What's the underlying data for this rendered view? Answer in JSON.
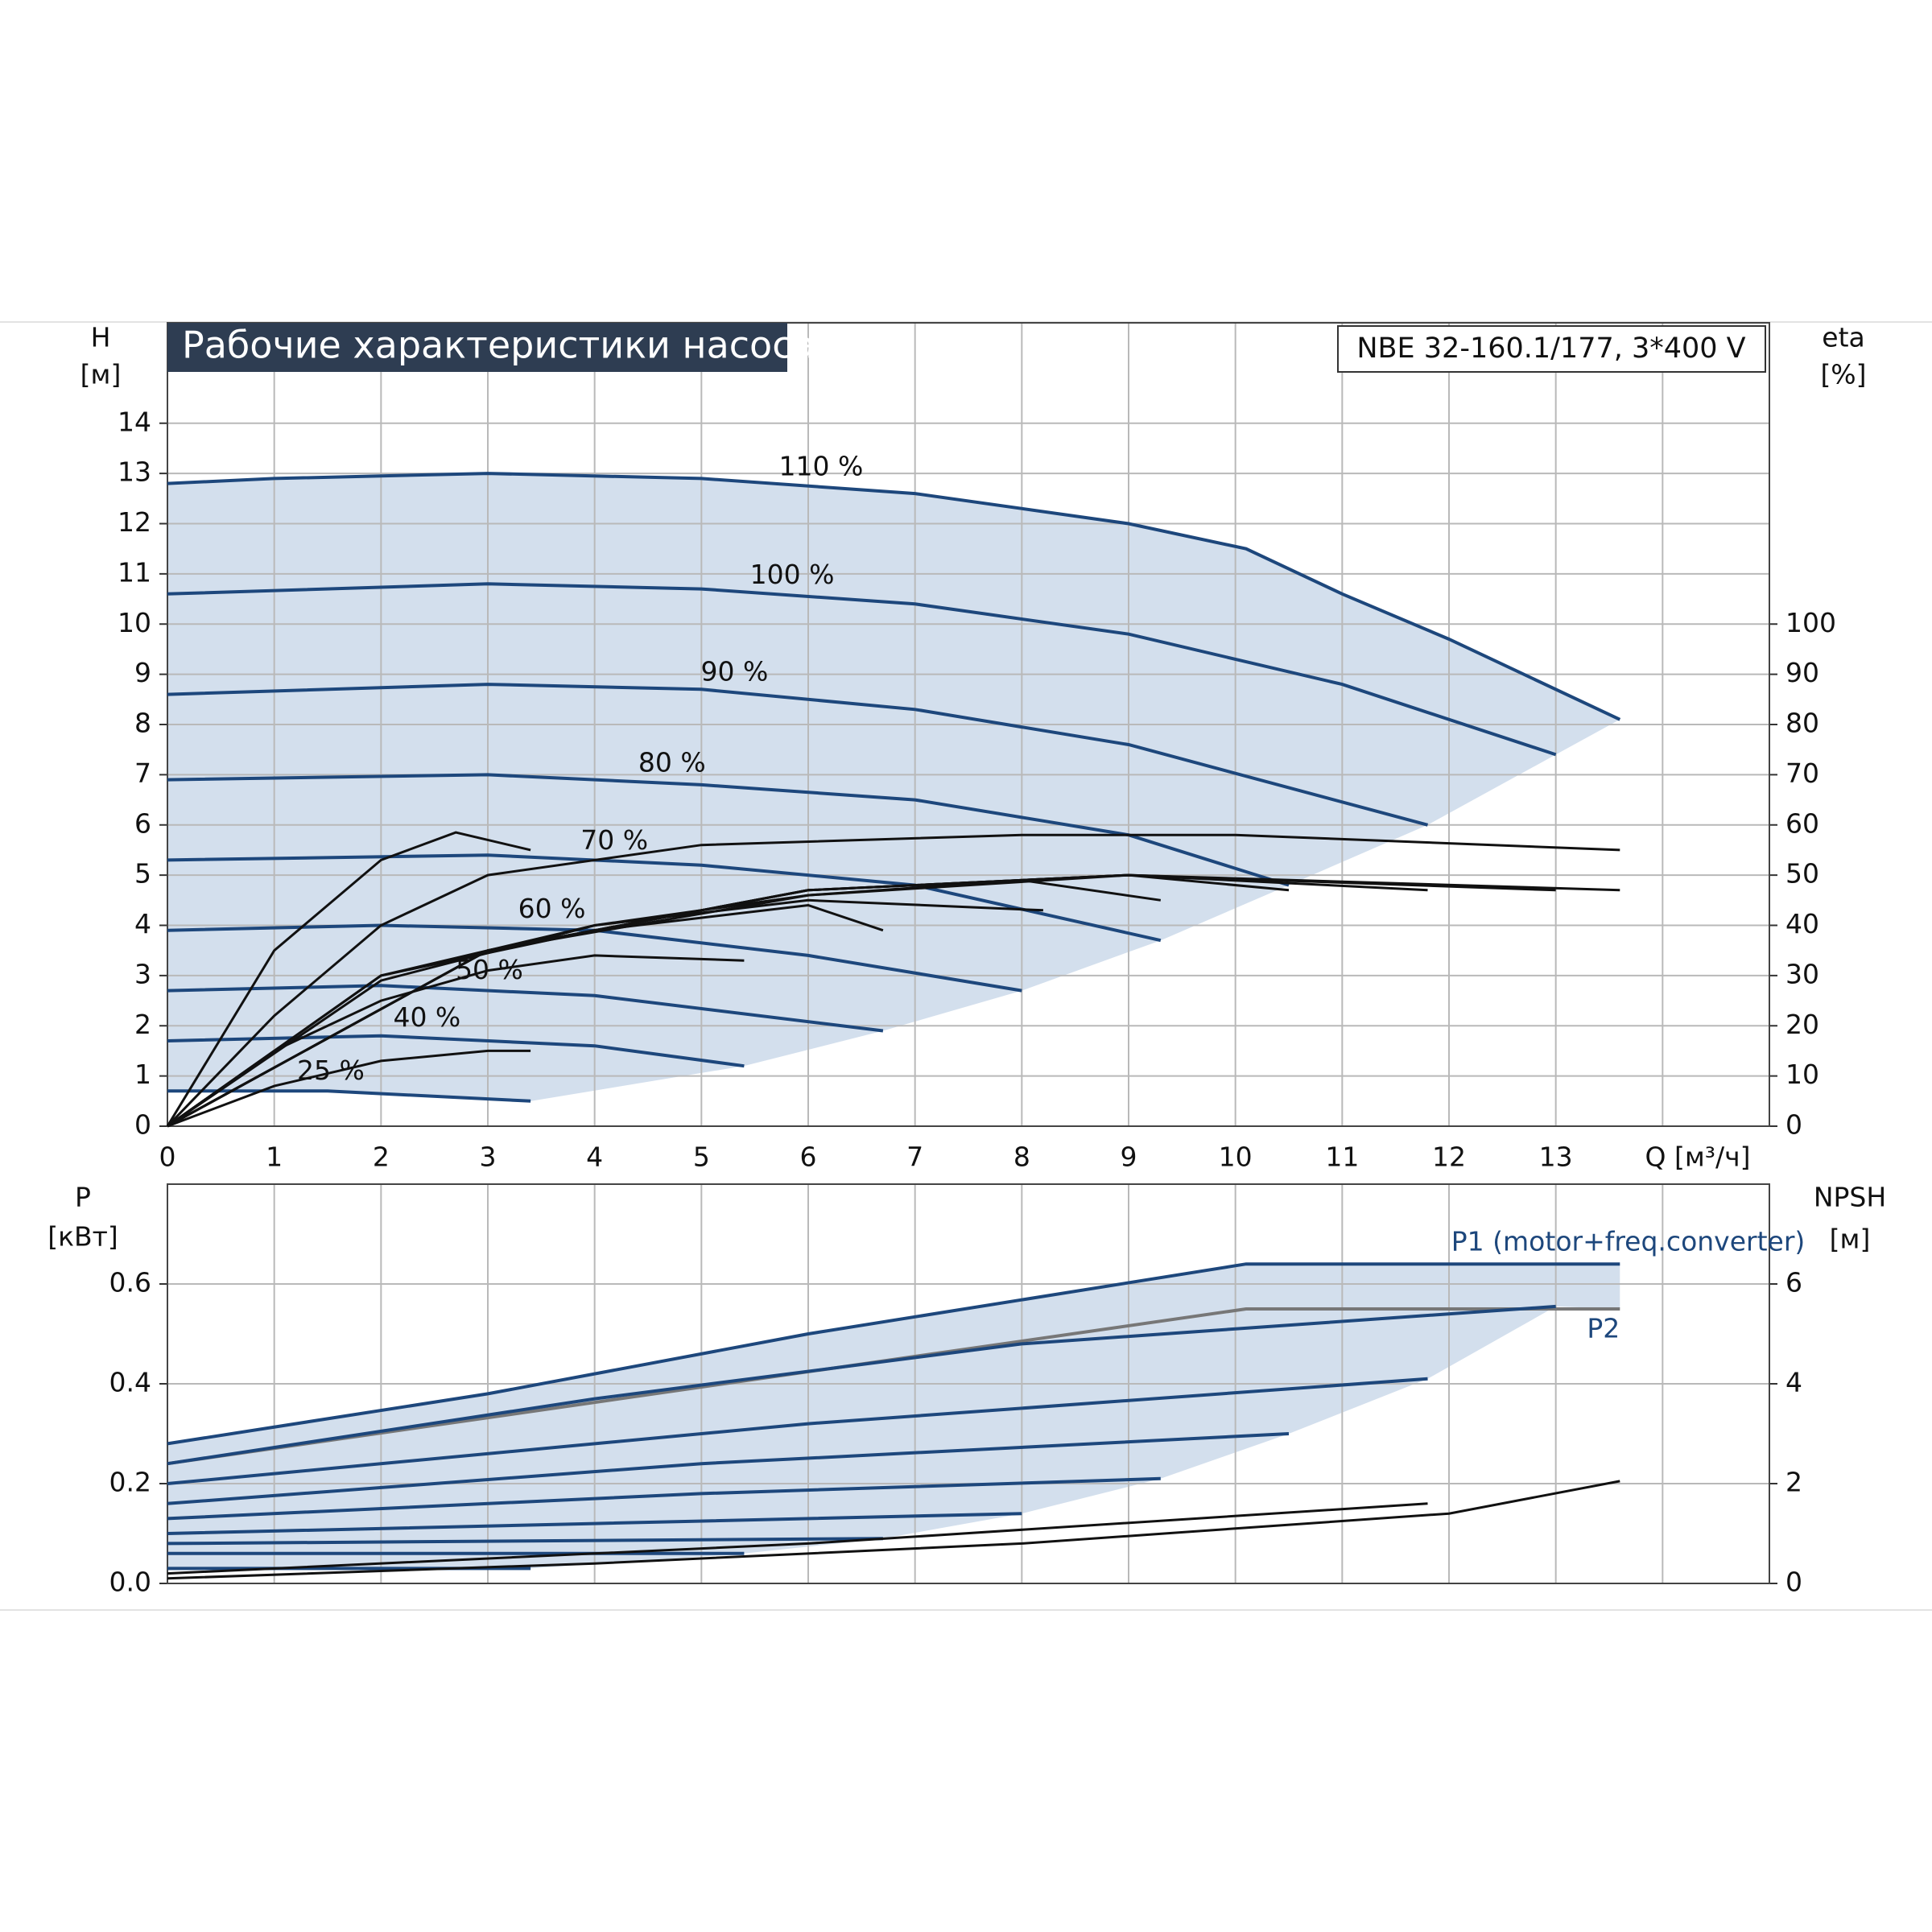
{
  "chart_data": [
    {
      "type": "line",
      "title": "Рабочие характеристики насоса",
      "subtitle": "NBE 32-160.1/177, 3*400 V",
      "y_label": [
        "H",
        "[м]"
      ],
      "y2_label": [
        "eta",
        "[%]"
      ],
      "x_label": "Q [м³/ч]",
      "xlim": [
        0,
        15
      ],
      "xticks": [
        0,
        1,
        2,
        3,
        4,
        5,
        6,
        7,
        8,
        9,
        10,
        11,
        12,
        13
      ],
      "ylim": [
        0,
        16
      ],
      "yticks": [
        0,
        1,
        2,
        3,
        4,
        5,
        6,
        7,
        8,
        9,
        10,
        11,
        12,
        13,
        14
      ],
      "y2lim": [
        0,
        160
      ],
      "y2ticks": [
        0,
        10,
        20,
        30,
        40,
        50,
        60,
        70,
        80,
        90,
        100
      ],
      "grid": true,
      "area_color": "#d3dfed",
      "series": [
        {
          "name": "110 %",
          "color": "#1d477c",
          "x": [
            0,
            1,
            3,
            5,
            7,
            9,
            10.1,
            11,
            12,
            13.6
          ],
          "values": [
            12.8,
            12.9,
            13,
            12.9,
            12.6,
            12,
            11.5,
            10.6,
            9.7,
            8.1
          ]
        },
        {
          "name": "100 %",
          "color": "#1d477c",
          "x": [
            0,
            3,
            5,
            7,
            9,
            11,
            13
          ],
          "values": [
            10.6,
            10.8,
            10.7,
            10.4,
            9.8,
            8.8,
            7.4
          ]
        },
        {
          "name": "90 %",
          "color": "#1d477c",
          "x": [
            0,
            3,
            5,
            7,
            9,
            11.8
          ],
          "values": [
            8.6,
            8.8,
            8.7,
            8.3,
            7.6,
            6.0
          ]
        },
        {
          "name": "80 %",
          "color": "#1d477c",
          "x": [
            0,
            3,
            5,
            7,
            9,
            10.5
          ],
          "values": [
            6.9,
            7.0,
            6.8,
            6.5,
            5.8,
            4.8
          ]
        },
        {
          "name": "70 %",
          "color": "#1d477c",
          "x": [
            0,
            3,
            5,
            7,
            9.3
          ],
          "values": [
            5.3,
            5.4,
            5.2,
            4.8,
            3.7
          ]
        },
        {
          "name": "60 %",
          "color": "#1d477c",
          "x": [
            0,
            2,
            4,
            6,
            8
          ],
          "values": [
            3.9,
            4.0,
            3.9,
            3.4,
            2.7
          ]
        },
        {
          "name": "50 %",
          "color": "#1d477c",
          "x": [
            0,
            2,
            4,
            6.7
          ],
          "values": [
            2.7,
            2.8,
            2.6,
            1.9
          ]
        },
        {
          "name": "40 %",
          "color": "#1d477c",
          "x": [
            0,
            2,
            4,
            5.4
          ],
          "values": [
            1.7,
            1.8,
            1.6,
            1.2
          ]
        },
        {
          "name": "25 %",
          "color": "#1d477c",
          "x": [
            0,
            1.5,
            3.4
          ],
          "values": [
            0.7,
            0.7,
            0.5
          ]
        },
        {
          "color": "#111111",
          "axis": "y2",
          "x": [
            0,
            1,
            2,
            3,
            3.4
          ],
          "values": [
            0,
            8,
            13,
            15,
            15
          ]
        },
        {
          "color": "#111111",
          "axis": "y2",
          "x": [
            0,
            1,
            2,
            3,
            4,
            5.4
          ],
          "values": [
            0,
            15,
            25,
            31,
            34,
            33
          ]
        },
        {
          "color": "#111111",
          "axis": "y2",
          "x": [
            0,
            2,
            4,
            6,
            6.7
          ],
          "values": [
            0,
            30,
            39,
            44,
            39
          ]
        },
        {
          "color": "#111111",
          "axis": "y2",
          "x": [
            0,
            2,
            4,
            6,
            8.2
          ],
          "values": [
            0,
            30,
            40,
            45,
            43
          ]
        },
        {
          "color": "#111111",
          "axis": "y2",
          "x": [
            0,
            2,
            4,
            6,
            8,
            9.3
          ],
          "values": [
            0,
            29,
            40,
            46,
            49,
            45
          ]
        },
        {
          "color": "#111111",
          "axis": "y2",
          "x": [
            0,
            3,
            6,
            9,
            10.5
          ],
          "values": [
            0,
            35,
            46,
            50,
            47
          ]
        },
        {
          "color": "#111111",
          "axis": "y2",
          "x": [
            0,
            3,
            6,
            9,
            11.8
          ],
          "values": [
            0,
            35,
            47,
            50,
            47
          ]
        },
        {
          "color": "#111111",
          "axis": "y2",
          "x": [
            0,
            3,
            6,
            9,
            13
          ],
          "values": [
            0,
            35,
            47,
            50,
            47
          ]
        },
        {
          "color": "#111111",
          "axis": "y2",
          "x": [
            0,
            3,
            6,
            9,
            13.6
          ],
          "values": [
            0,
            35,
            47,
            50,
            47
          ]
        },
        {
          "color": "#111111",
          "axis": "y2",
          "x": [
            0,
            1,
            2,
            3,
            5,
            8,
            10,
            13.6
          ],
          "values": [
            0,
            22,
            40,
            50,
            56,
            58,
            58,
            55
          ]
        },
        {
          "color": "#111111",
          "axis": "y2",
          "x": [
            0,
            1,
            2,
            2.7,
            3.4
          ],
          "values": [
            0,
            35,
            53,
            58.5,
            55
          ]
        }
      ]
    },
    {
      "type": "line",
      "y_label": [
        "P",
        "[кВт]"
      ],
      "y2_label": [
        "NPSH",
        "[м]"
      ],
      "xlim": [
        0,
        15
      ],
      "ylim": [
        0,
        0.8
      ],
      "yticks": [
        {
          "value": 0,
          "label": "0.0"
        },
        0.2,
        0.4,
        0.6
      ],
      "y2lim": [
        0,
        8
      ],
      "y2ticks": [
        0,
        2,
        4,
        6
      ],
      "grid": true,
      "area_color": "#d3dfed",
      "series": [
        {
          "name": "P1 (motor+freq.converter)",
          "color": "#1d477c",
          "x": [
            0,
            3,
            6,
            10.1,
            13.6
          ],
          "values": [
            0.28,
            0.38,
            0.5,
            0.64,
            0.64
          ]
        },
        {
          "name": "P2",
          "color": "#777777",
          "x": [
            0,
            10.1,
            13.6
          ],
          "values": [
            0.24,
            0.55,
            0.55
          ]
        },
        {
          "color": "#1d477c",
          "x": [
            0,
            4,
            8,
            13
          ],
          "values": [
            0.24,
            0.37,
            0.48,
            0.555
          ]
        },
        {
          "color": "#1d477c",
          "x": [
            0,
            6,
            11.8
          ],
          "values": [
            0.2,
            0.32,
            0.41
          ]
        },
        {
          "color": "#1d477c",
          "x": [
            0,
            5,
            10.5
          ],
          "values": [
            0.16,
            0.24,
            0.3
          ]
        },
        {
          "color": "#1d477c",
          "x": [
            0,
            5,
            9.3
          ],
          "values": [
            0.13,
            0.18,
            0.21
          ]
        },
        {
          "color": "#1d477c",
          "x": [
            0,
            4,
            8
          ],
          "values": [
            0.1,
            0.12,
            0.14
          ]
        },
        {
          "color": "#1d477c",
          "x": [
            0,
            6.7
          ],
          "values": [
            0.08,
            0.09
          ]
        },
        {
          "color": "#1d477c",
          "x": [
            0,
            5.4
          ],
          "values": [
            0.06,
            0.06
          ]
        },
        {
          "color": "#1d477c",
          "x": [
            0,
            3.4
          ],
          "values": [
            0.03,
            0.03
          ]
        },
        {
          "color": "#111111",
          "axis": "y2",
          "x": [
            0,
            4,
            8,
            10,
            12,
            13.6
          ],
          "values": [
            0.1,
            0.4,
            0.8,
            1.1,
            1.4,
            2.05
          ]
        },
        {
          "color": "#111111",
          "axis": "y2",
          "x": [
            0,
            6,
            11.8
          ],
          "values": [
            0.2,
            0.8,
            1.6
          ]
        }
      ]
    }
  ]
}
